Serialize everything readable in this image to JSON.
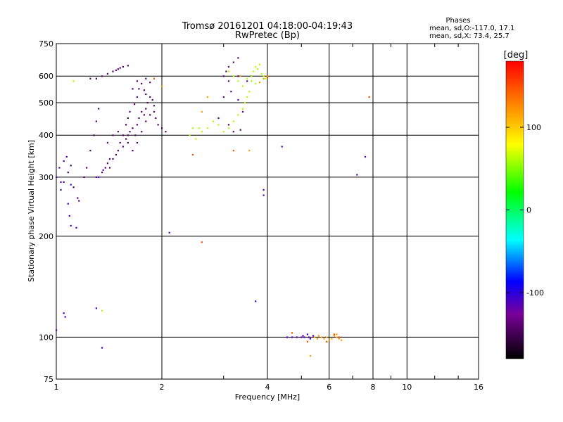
{
  "header": {
    "title": "Tromsø 20161201 04:18:00-04:19:43",
    "subtitle": "RwPretec (Bp)",
    "stats_title": "Phases",
    "stats_o": "mean, sd,O:-117.0, 17.1",
    "stats_x": "mean, sd,X:  73.4, 25.7"
  },
  "chart_data": {
    "type": "scatter",
    "xlabel": "Frequency [MHz]",
    "ylabel": "Stationary phase Virtual Height [km]",
    "x_scale": "log",
    "y_scale": "log",
    "xlim": [
      1,
      16
    ],
    "ylim": [
      75,
      750
    ],
    "grid": true,
    "x_ticks": [
      1,
      2,
      4,
      6,
      8,
      10,
      16
    ],
    "x_tick_labels": [
      "1",
      "2",
      "4",
      "6",
      "8",
      "10",
      "16"
    ],
    "y_ticks": [
      75,
      100,
      200,
      300,
      400,
      500,
      600,
      750
    ],
    "y_tick_labels": [
      "75",
      "100",
      "200",
      "300",
      "400",
      "500",
      "600",
      "750"
    ],
    "colorbar": {
      "label": "[deg]",
      "range": [
        -180,
        180
      ],
      "ticks": [
        100,
        0,
        -100
      ],
      "tick_labels": [
        "100",
        "0",
        "-100"
      ],
      "colors": [
        "#000000",
        "#7a0099",
        "#0000ff",
        "#00ffff",
        "#00ff00",
        "#ffff00",
        "#ff8000",
        "#ff0000"
      ]
    },
    "series": [
      {
        "phase": -117,
        "points": [
          [
            1.0,
            105
          ],
          [
            1.05,
            118
          ],
          [
            1.06,
            115
          ],
          [
            1.3,
            122
          ],
          [
            1.35,
            93
          ],
          [
            1.09,
            230
          ],
          [
            1.08,
            250
          ],
          [
            1.1,
            215
          ],
          [
            1.14,
            212
          ],
          [
            1.16,
            255
          ],
          [
            1.0,
            300
          ],
          [
            1.02,
            320
          ],
          [
            1.05,
            335
          ],
          [
            1.07,
            345
          ],
          [
            1.03,
            290
          ],
          [
            1.1,
            285
          ],
          [
            2.1,
            205
          ],
          [
            4.4,
            370
          ],
          [
            3.7,
            128
          ],
          [
            3.9,
            275
          ],
          [
            3.9,
            265
          ],
          [
            7.2,
            305
          ],
          [
            7.6,
            345
          ],
          [
            4.55,
            100
          ],
          [
            4.7,
            100
          ],
          [
            4.85,
            100
          ],
          [
            5.0,
            100
          ],
          [
            5.05,
            101
          ],
          [
            5.1,
            100
          ],
          [
            5.2,
            102
          ],
          [
            5.25,
            100
          ],
          [
            5.3,
            99
          ],
          [
            5.4,
            101
          ],
          [
            1.32,
            300
          ],
          [
            1.36,
            315
          ],
          [
            1.42,
            340
          ]
        ]
      },
      {
        "phase": -145,
        "points": [
          [
            1.03,
            275
          ],
          [
            1.05,
            290
          ],
          [
            1.08,
            310
          ],
          [
            1.1,
            325
          ],
          [
            1.12,
            280
          ],
          [
            1.15,
            260
          ],
          [
            1.2,
            300
          ],
          [
            1.22,
            320
          ],
          [
            1.25,
            360
          ],
          [
            1.28,
            400
          ],
          [
            1.3,
            440
          ],
          [
            1.32,
            480
          ],
          [
            1.3,
            300
          ],
          [
            1.35,
            310
          ],
          [
            1.38,
            320
          ],
          [
            1.4,
            330
          ],
          [
            1.42,
            320
          ],
          [
            1.45,
            340
          ],
          [
            1.48,
            350
          ],
          [
            1.5,
            360
          ],
          [
            1.52,
            380
          ],
          [
            1.55,
            370
          ],
          [
            1.58,
            390
          ],
          [
            1.6,
            400
          ],
          [
            1.62,
            410
          ],
          [
            1.65,
            420
          ],
          [
            1.68,
            400
          ],
          [
            1.7,
            430
          ],
          [
            1.72,
            450
          ],
          [
            1.75,
            470
          ],
          [
            1.78,
            460
          ],
          [
            1.8,
            480
          ],
          [
            1.82,
            500
          ],
          [
            1.85,
            520
          ],
          [
            1.88,
            510
          ],
          [
            1.9,
            470
          ],
          [
            1.92,
            450
          ],
          [
            1.95,
            430
          ],
          [
            2.0,
            420
          ],
          [
            2.05,
            410
          ],
          [
            1.55,
            400
          ],
          [
            1.6,
            380
          ],
          [
            1.65,
            360
          ],
          [
            1.7,
            380
          ],
          [
            1.75,
            410
          ],
          [
            1.8,
            440
          ],
          [
            1.85,
            460
          ],
          [
            1.9,
            490
          ],
          [
            1.7,
            520
          ],
          [
            1.72,
            550
          ],
          [
            1.75,
            570
          ],
          [
            1.8,
            530
          ],
          [
            1.6,
            450
          ],
          [
            1.58,
            430
          ],
          [
            1.62,
            470
          ],
          [
            1.67,
            495
          ],
          [
            1.3,
            590
          ],
          [
            1.35,
            600
          ],
          [
            1.4,
            610
          ],
          [
            1.45,
            620
          ],
          [
            1.5,
            630
          ],
          [
            1.55,
            640
          ],
          [
            1.6,
            645
          ],
          [
            1.52,
            635
          ],
          [
            1.48,
            625
          ],
          [
            1.25,
            590
          ],
          [
            1.8,
            590
          ],
          [
            1.85,
            575
          ],
          [
            1.78,
            545
          ],
          [
            3.1,
            640
          ],
          [
            3.2,
            660
          ],
          [
            3.3,
            680
          ],
          [
            3.0,
            600
          ],
          [
            3.05,
            620
          ],
          [
            3.1,
            580
          ],
          [
            3.15,
            540
          ],
          [
            3.0,
            520
          ],
          [
            2.9,
            450
          ],
          [
            3.1,
            430
          ],
          [
            3.2,
            410
          ],
          [
            3.35,
            415
          ],
          [
            3.4,
            470
          ],
          [
            3.3,
            510
          ],
          [
            3.5,
            580
          ],
          [
            3.6,
            600
          ],
          [
            3.3,
            600
          ],
          [
            1.65,
            550
          ],
          [
            1.7,
            580
          ],
          [
            1.45,
            400
          ],
          [
            1.5,
            410
          ],
          [
            1.4,
            380
          ]
        ]
      },
      {
        "phase": 60,
        "points": [
          [
            2.4,
            400
          ],
          [
            2.45,
            420
          ],
          [
            2.5,
            390
          ],
          [
            2.6,
            410
          ],
          [
            2.7,
            420
          ],
          [
            2.8,
            440
          ],
          [
            2.9,
            430
          ],
          [
            3.0,
            410
          ],
          [
            3.1,
            420
          ],
          [
            3.2,
            440
          ],
          [
            3.3,
            460
          ],
          [
            3.4,
            480
          ],
          [
            3.45,
            500
          ],
          [
            3.5,
            520
          ],
          [
            3.55,
            540
          ],
          [
            3.4,
            560
          ],
          [
            3.5,
            590
          ],
          [
            3.6,
            600
          ],
          [
            3.65,
            620
          ],
          [
            3.7,
            640
          ],
          [
            3.8,
            650
          ],
          [
            3.75,
            630
          ],
          [
            3.85,
            610
          ],
          [
            3.9,
            600
          ],
          [
            3.95,
            590
          ],
          [
            3.6,
            580
          ],
          [
            3.7,
            570
          ],
          [
            3.3,
            580
          ],
          [
            3.2,
            600
          ],
          [
            3.1,
            620
          ],
          [
            1.12,
            580
          ],
          [
            1.35,
            120
          ],
          [
            2.55,
            420
          ]
        ]
      },
      {
        "phase": 120,
        "points": [
          [
            2.0,
            560
          ],
          [
            2.6,
            470
          ],
          [
            2.7,
            520
          ],
          [
            3.9,
            590
          ],
          [
            4.0,
            600
          ],
          [
            3.8,
            575
          ],
          [
            3.55,
            360
          ],
          [
            3.35,
            600
          ],
          [
            5.45,
            100
          ],
          [
            5.55,
            99
          ],
          [
            5.6,
            101
          ],
          [
            5.7,
            100
          ],
          [
            5.8,
            99
          ],
          [
            5.9,
            100
          ],
          [
            6.0,
            98
          ],
          [
            6.1,
            99
          ],
          [
            6.2,
            101
          ],
          [
            6.3,
            100
          ],
          [
            6.4,
            99
          ],
          [
            6.5,
            98
          ],
          [
            5.3,
            88
          ],
          [
            6.3,
            102
          ]
        ]
      },
      {
        "phase": 150,
        "points": [
          [
            2.45,
            350
          ],
          [
            2.6,
            192
          ],
          [
            4.0,
            595
          ],
          [
            3.2,
            360
          ],
          [
            4.7,
            103
          ],
          [
            5.2,
            97
          ],
          [
            5.9,
            97
          ],
          [
            6.2,
            102
          ],
          [
            6.4,
            100
          ],
          [
            7.8,
            520
          ],
          [
            1.9,
            590
          ]
        ]
      }
    ]
  }
}
